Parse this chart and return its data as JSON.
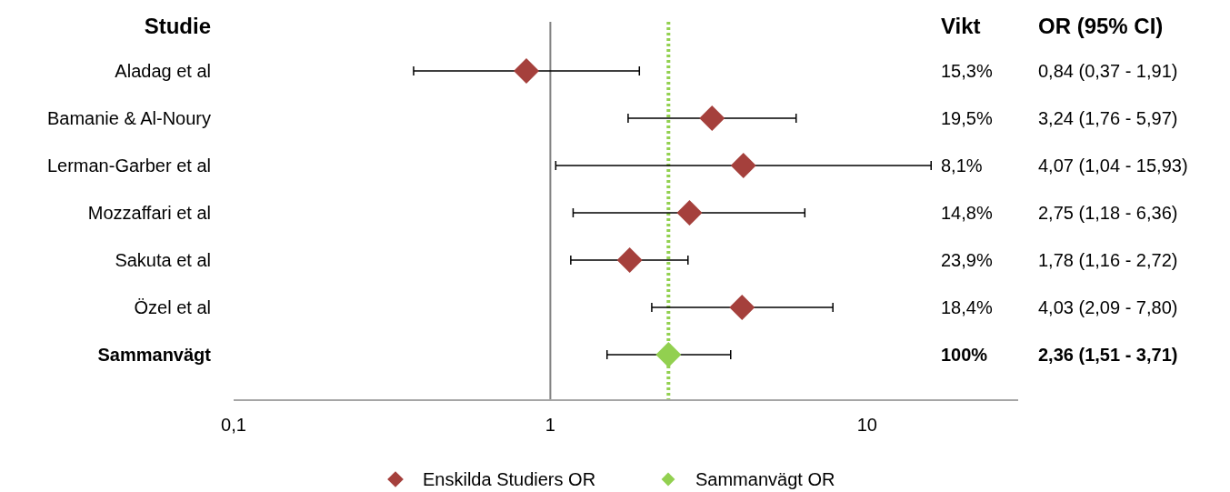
{
  "chart_data": {
    "type": "scatter",
    "orientation": "horizontal",
    "log": "x",
    "ylabel": "Studie",
    "categories": [
      "Aladag et al",
      "Bamanie & Al-Noury",
      "Lerman-Garber et al",
      "Mozzaffari et al",
      "Sakuta et al",
      "Özel et al",
      "Sammanvägt"
    ],
    "xlim": [
      0.1,
      30
    ],
    "xticks": [
      {
        "value": 0.1,
        "label": "0,1"
      },
      1,
      10
    ],
    "series": [
      {
        "name": "Enskilda Studiers OR",
        "color": "#a5403c",
        "values": [
          0.84,
          3.24,
          4.07,
          2.75,
          1.78,
          4.03,
          null
        ],
        "errors": [
          [
            0.37,
            1.91
          ],
          [
            1.76,
            5.97
          ],
          [
            1.04,
            15.93
          ],
          [
            1.18,
            6.36
          ],
          [
            1.16,
            2.72
          ],
          [
            2.09,
            7.8
          ],
          null
        ]
      },
      {
        "name": "Sammanvägt OR",
        "color": "#92d050",
        "values": [
          null,
          null,
          null,
          null,
          null,
          null,
          2.36
        ],
        "errors": [
          null,
          null,
          null,
          null,
          null,
          null,
          [
            1.51,
            3.71
          ]
        ]
      }
    ],
    "ref_lines": [
      {
        "axis": "x",
        "value": 1,
        "color": "#808080",
        "line_style": "solid"
      },
      {
        "axis": "x",
        "value": 2.36,
        "color": "#92d050",
        "line_style": "dotted"
      }
    ],
    "annotations": [
      "Vikt",
      "OR (95% CI)",
      "15,3%",
      "0,84 (0,37 - 1,91)",
      "19,5%",
      "3,24 (1,76 - 5,97)",
      "8,1%",
      "4,07 (1,04 - 15,93)",
      "14,8%",
      "2,75 (1,18 - 6,36)",
      "23,9%",
      "1,78 (1,16 - 2,72)",
      "18,4%",
      "4,03 (2,09 - 7,80)",
      "100%",
      "2,36 (1,51 - 3,71)"
    ],
    "marker": "diamond",
    "legend": "bottom"
  }
}
